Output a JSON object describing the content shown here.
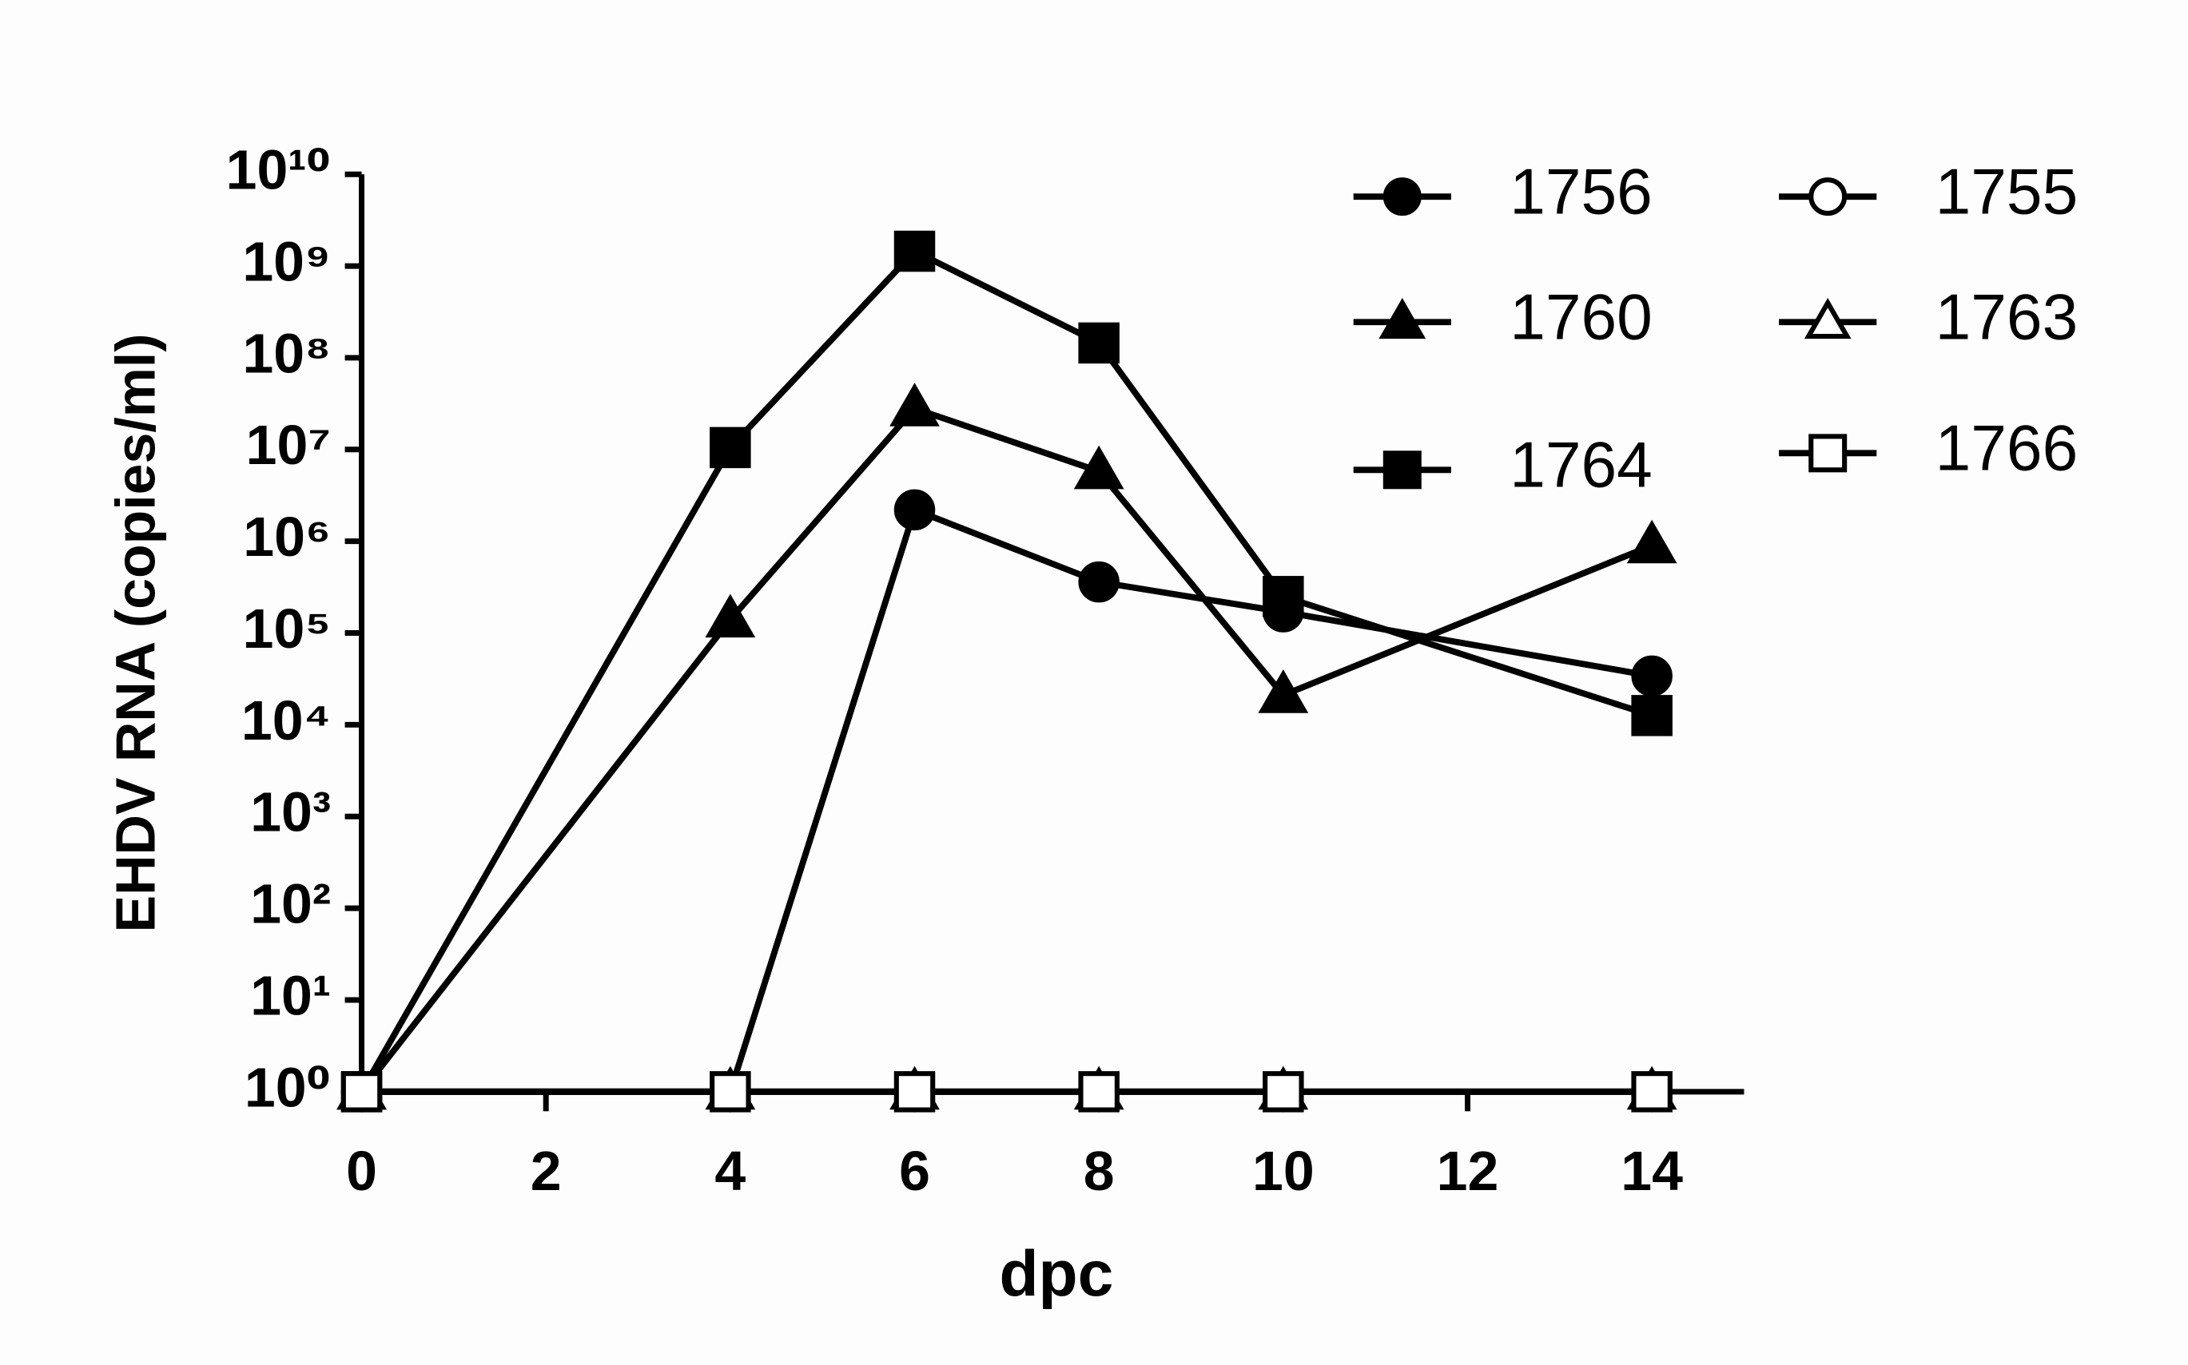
{
  "chart_data": {
    "type": "line",
    "x_label": "dpc",
    "y_label": "EHDV RNA (copies/ml)",
    "x": [
      0,
      4,
      6,
      8,
      10,
      14
    ],
    "xlim": [
      0,
      15
    ],
    "xticks": [
      0,
      2,
      4,
      6,
      8,
      10,
      12,
      14
    ],
    "ylim": [
      1,
      10000000000
    ],
    "yscale": "log",
    "yticks": [
      {
        "value": 1,
        "label": "10⁰"
      },
      {
        "value": 10,
        "label": "10¹"
      },
      {
        "value": 100,
        "label": "10²"
      },
      {
        "value": 1000,
        "label": "10³"
      },
      {
        "value": 10000,
        "label": "10⁴"
      },
      {
        "value": 100000,
        "label": "10⁵"
      },
      {
        "value": 1000000,
        "label": "10⁶"
      },
      {
        "value": 10000000,
        "label": "10⁷"
      },
      {
        "value": 100000000,
        "label": "10⁸"
      },
      {
        "value": 1000000000,
        "label": "10⁹"
      },
      {
        "value": 10000000000,
        "label": "10¹⁰"
      }
    ],
    "grid": false,
    "legend": "upper right",
    "series": [
      {
        "name": "1756",
        "color": "#000000",
        "marker": "circle",
        "marker_fill": "#000000",
        "values": [
          1,
          1,
          2200000,
          360000,
          170000,
          34000
        ]
      },
      {
        "name": "1760",
        "color": "#000000",
        "marker": "triangle",
        "marker_fill": "#000000",
        "values": [
          1,
          140000,
          28000000,
          5800000,
          21000,
          900000
        ]
      },
      {
        "name": "1764",
        "color": "#000000",
        "marker": "square",
        "marker_fill": "#000000",
        "values": [
          1,
          10500000,
          1450000000,
          145000000,
          250000,
          12600
        ]
      },
      {
        "name": "1755",
        "color": "#000000",
        "marker": "circle",
        "marker_fill": "#ffffff",
        "values": [
          1,
          1,
          1,
          1,
          1,
          1
        ]
      },
      {
        "name": "1763",
        "color": "#000000",
        "marker": "triangle",
        "marker_fill": "#ffffff",
        "values": [
          1,
          1,
          1,
          1,
          1,
          1
        ]
      },
      {
        "name": "1766",
        "color": "#000000",
        "marker": "square",
        "marker_fill": "#ffffff",
        "values": [
          1,
          1,
          1,
          1,
          1,
          1
        ]
      }
    ]
  }
}
